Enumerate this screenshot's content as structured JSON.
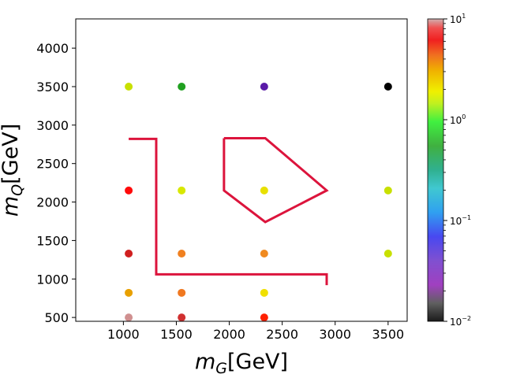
{
  "chart_data": {
    "type": "scatter",
    "xlabel": "m_G[GeV]",
    "ylabel": "m_Q[GeV]",
    "xlim": [
      550,
      3680
    ],
    "ylim": [
      450,
      4380
    ],
    "x_ticks": [
      1000,
      1500,
      2000,
      2500,
      3000,
      3500
    ],
    "y_ticks": [
      500,
      1000,
      1500,
      2000,
      2500,
      3000,
      3500,
      4000
    ],
    "grid": false,
    "colorbar": {
      "scale": "log",
      "range": [
        0.01,
        10
      ],
      "ticks": [
        {
          "value": 10,
          "base": "10",
          "exp": "1"
        },
        {
          "value": 1,
          "base": "10",
          "exp": "0"
        },
        {
          "value": 0.1,
          "base": "10",
          "exp": "−1"
        },
        {
          "value": 0.01,
          "base": "10",
          "exp": "−2"
        }
      ]
    },
    "points": [
      {
        "x": 1050,
        "y": 3500,
        "color": "#c8e000"
      },
      {
        "x": 1550,
        "y": 3500,
        "color": "#20a020"
      },
      {
        "x": 2330,
        "y": 3500,
        "color": "#5a1aa8"
      },
      {
        "x": 3500,
        "y": 3500,
        "color": "#000000"
      },
      {
        "x": 1050,
        "y": 2150,
        "color": "#ff0a0a"
      },
      {
        "x": 1550,
        "y": 2150,
        "color": "#d8e800"
      },
      {
        "x": 2330,
        "y": 2150,
        "color": "#e8e000"
      },
      {
        "x": 3500,
        "y": 2150,
        "color": "#c8e000"
      },
      {
        "x": 1050,
        "y": 1330,
        "color": "#d02020"
      },
      {
        "x": 1550,
        "y": 1330,
        "color": "#f08020"
      },
      {
        "x": 2330,
        "y": 1330,
        "color": "#f08a20"
      },
      {
        "x": 3500,
        "y": 1330,
        "color": "#c8e000"
      },
      {
        "x": 1050,
        "y": 820,
        "color": "#e8a000"
      },
      {
        "x": 1550,
        "y": 820,
        "color": "#f07820"
      },
      {
        "x": 2330,
        "y": 820,
        "color": "#f0e000"
      },
      {
        "x": 1050,
        "y": 500,
        "color": "#d09090"
      },
      {
        "x": 1550,
        "y": 500,
        "color": "#d03030"
      },
      {
        "x": 2330,
        "y": 500,
        "color": "#ff2000"
      }
    ],
    "contours": [
      {
        "color": "#dc143c",
        "points": [
          [
            1050,
            2820
          ],
          [
            1310,
            2820
          ],
          [
            1310,
            1060
          ],
          [
            2920,
            1060
          ],
          [
            2920,
            920
          ]
        ]
      },
      {
        "color": "#dc143c",
        "points": [
          [
            1950,
            2830
          ],
          [
            2340,
            2830
          ],
          [
            2920,
            2150
          ],
          [
            2340,
            1740
          ],
          [
            1950,
            2150
          ],
          [
            1950,
            2830
          ]
        ]
      }
    ]
  }
}
